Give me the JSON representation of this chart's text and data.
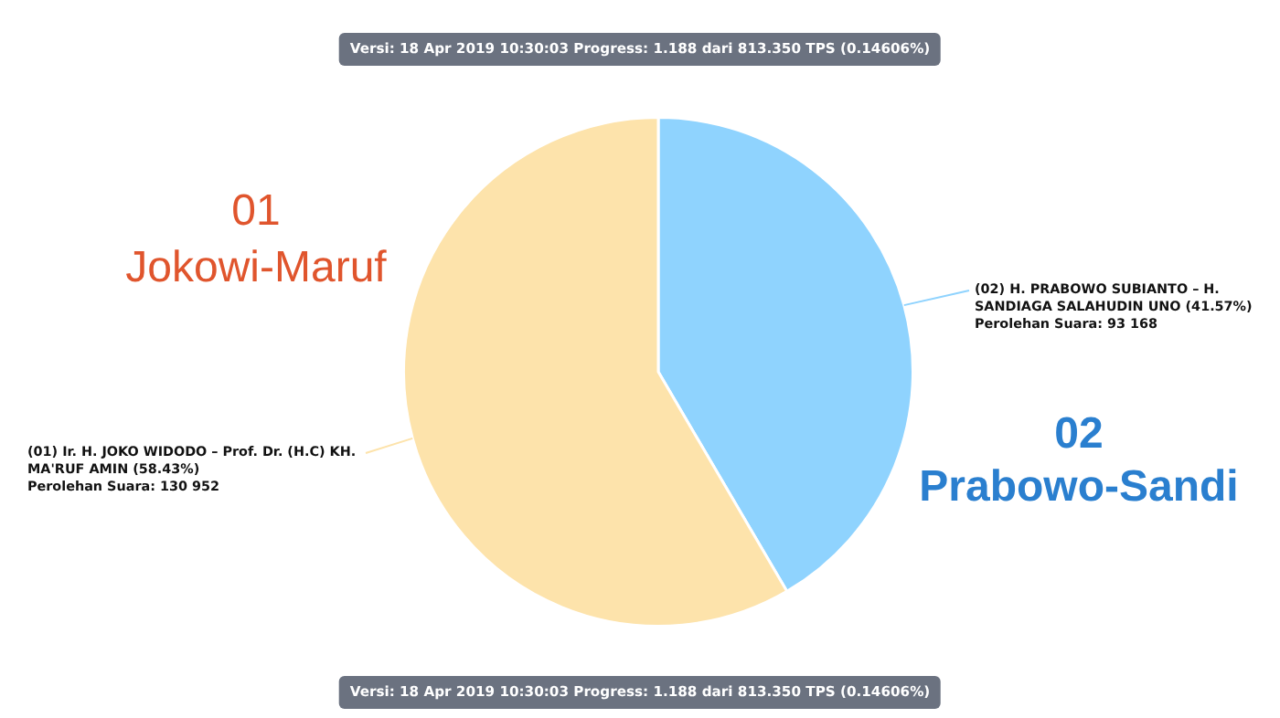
{
  "chart_data": {
    "type": "pie",
    "title": "Versi: 18 Apr 2019 10:30:03 Progress: 1.188 dari 813.350 TPS (0.14606%)",
    "categories": [
      "(02) H. PRABOWO SUBIANTO – H. SANDIAGA SALAHUDIN UNO (41.57%)",
      "(01) Ir. H. JOKO WIDODO – Prof. Dr. (H.C) KH. MA'RUF AMIN (58.43%)"
    ],
    "values": [
      93168,
      130952
    ],
    "colors": [
      "#8fd3fe",
      "#fde3ab"
    ],
    "value_labels": [
      "Perolehan Suara: 93 168",
      "Perolehan Suara: 130 952"
    ],
    "annotations": [
      "Versi: 18 Apr 2019 10:30:03 Progress: 1.188 dari 813.350 TPS (0.14606%)",
      "01",
      "Jokowi-Maruf",
      "02",
      "Prabowo-Sandi"
    ]
  }
}
